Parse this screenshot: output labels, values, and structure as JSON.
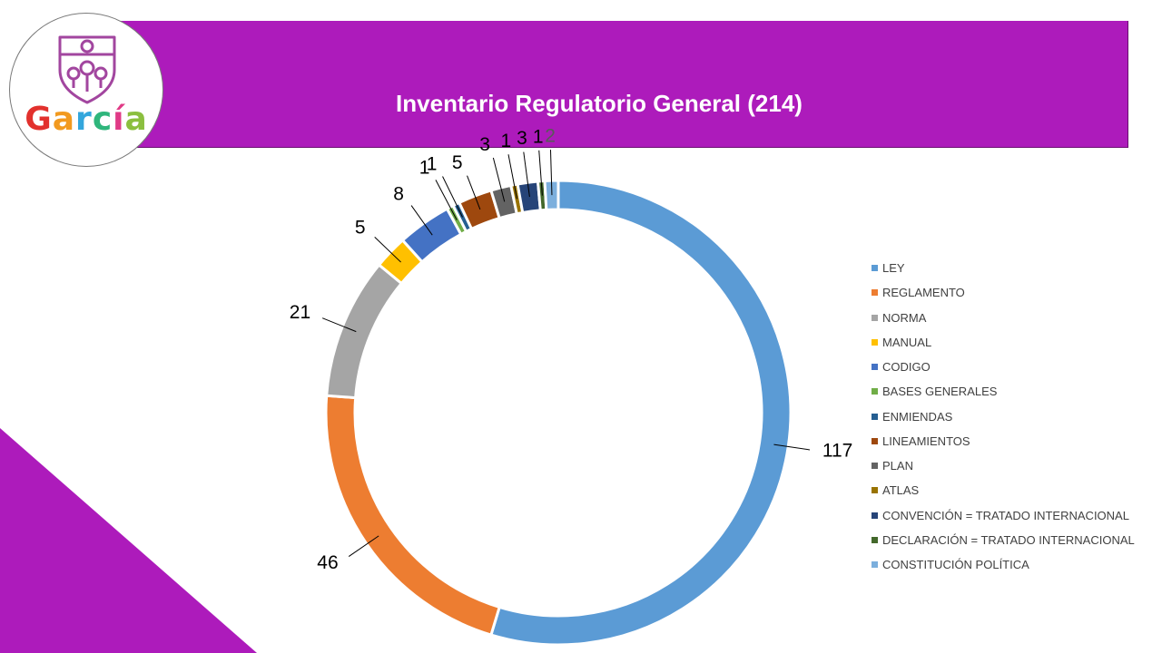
{
  "header": {
    "title": "Inventario Regulatorio General (214)"
  },
  "logo": {
    "text_letters": [
      {
        "ch": "G",
        "color": "#e2312d"
      },
      {
        "ch": "a",
        "color": "#f29a1f"
      },
      {
        "ch": "r",
        "color": "#33a6dc"
      },
      {
        "ch": "c",
        "color": "#2fb67c"
      },
      {
        "ch": "í",
        "color": "#e03a86"
      },
      {
        "ch": "a",
        "color": "#8bbf3f"
      }
    ],
    "emblem_color": "#a2469f"
  },
  "colors": {
    "accent": "#ad1bbb"
  },
  "chart_data": {
    "type": "pie",
    "style": "donut",
    "total": 214,
    "categories": [
      "LEY",
      "REGLAMENTO",
      "NORMA",
      "MANUAL",
      "CODIGO",
      "BASES GENERALES",
      "ENMIENDAS",
      "LINEAMIENTOS",
      "PLAN",
      "ATLAS",
      "CONVENCIÓN = TRATADO INTERNACIONAL",
      "DECLARACIÓN = TRATADO INTERNACIONAL",
      "CONSTITUCIÓN POLÍTICA"
    ],
    "values": [
      117,
      46,
      21,
      5,
      8,
      1,
      1,
      5,
      3,
      1,
      3,
      1,
      2
    ],
    "colors": [
      "#5b9bd5",
      "#ed7d31",
      "#a5a5a5",
      "#ffc000",
      "#4472c4",
      "#70ad47",
      "#255e91",
      "#9e480e",
      "#636363",
      "#997300",
      "#264478",
      "#43682b",
      "#7cafdd"
    ],
    "legend_position": "right"
  }
}
